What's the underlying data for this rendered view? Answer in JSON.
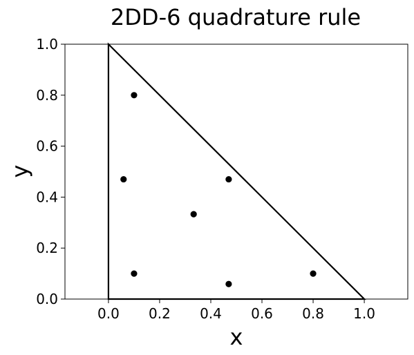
{
  "chart_data": {
    "type": "scatter",
    "title": "2DD-6 quadrature rule",
    "xlabel": "x",
    "ylabel": "y",
    "xlim": [
      -0.17,
      1.17
    ],
    "ylim": [
      0.0,
      1.0
    ],
    "xticks": [
      0.0,
      0.2,
      0.4,
      0.6,
      0.8,
      1.0
    ],
    "xtick_labels": [
      "0.0",
      "0.2",
      "0.4",
      "0.6",
      "0.8",
      "1.0"
    ],
    "yticks": [
      0.0,
      0.2,
      0.4,
      0.6,
      0.8,
      1.0
    ],
    "ytick_labels": [
      "0.0",
      "0.2",
      "0.4",
      "0.6",
      "0.8",
      "1.0"
    ],
    "grid": false,
    "triangle": [
      [
        0.0,
        0.0
      ],
      [
        1.0,
        0.0
      ],
      [
        0.0,
        1.0
      ]
    ],
    "points": [
      {
        "x": 0.1,
        "y": 0.8
      },
      {
        "x": 0.059,
        "y": 0.47
      },
      {
        "x": 0.47,
        "y": 0.47
      },
      {
        "x": 0.333,
        "y": 0.333
      },
      {
        "x": 0.1,
        "y": 0.1
      },
      {
        "x": 0.47,
        "y": 0.059
      },
      {
        "x": 0.8,
        "y": 0.1
      }
    ],
    "colors": {
      "marker": "#000000",
      "line": "#000000",
      "axes": "#000000",
      "background": "#ffffff"
    }
  }
}
